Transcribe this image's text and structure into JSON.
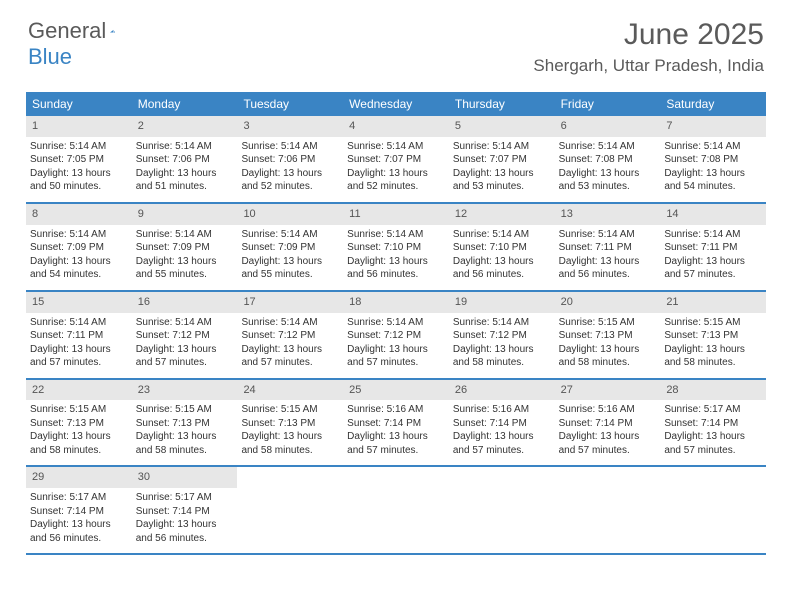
{
  "brand": {
    "part1": "General",
    "part2": "Blue"
  },
  "title": "June 2025",
  "location": "Shergarh, Uttar Pradesh, India",
  "colors": {
    "accent": "#3a84c4",
    "header_text": "#ffffff",
    "daynum_bg": "#e7e7e7",
    "text": "#333333",
    "muted": "#5a5a5a",
    "background": "#ffffff"
  },
  "typography": {
    "title_fontsize": 30,
    "location_fontsize": 17,
    "dayheader_fontsize": 12,
    "daynum_fontsize": 11,
    "body_fontsize": 10
  },
  "layout": {
    "columns": 7,
    "rows": 5,
    "cell_rule_color": "#3a84c4",
    "cell_rule_width": 2
  },
  "day_headers": [
    "Sunday",
    "Monday",
    "Tuesday",
    "Wednesday",
    "Thursday",
    "Friday",
    "Saturday"
  ],
  "days": [
    {
      "n": "1",
      "sr": "5:14 AM",
      "ss": "7:05 PM",
      "dl": "13 hours and 50 minutes."
    },
    {
      "n": "2",
      "sr": "5:14 AM",
      "ss": "7:06 PM",
      "dl": "13 hours and 51 minutes."
    },
    {
      "n": "3",
      "sr": "5:14 AM",
      "ss": "7:06 PM",
      "dl": "13 hours and 52 minutes."
    },
    {
      "n": "4",
      "sr": "5:14 AM",
      "ss": "7:07 PM",
      "dl": "13 hours and 52 minutes."
    },
    {
      "n": "5",
      "sr": "5:14 AM",
      "ss": "7:07 PM",
      "dl": "13 hours and 53 minutes."
    },
    {
      "n": "6",
      "sr": "5:14 AM",
      "ss": "7:08 PM",
      "dl": "13 hours and 53 minutes."
    },
    {
      "n": "7",
      "sr": "5:14 AM",
      "ss": "7:08 PM",
      "dl": "13 hours and 54 minutes."
    },
    {
      "n": "8",
      "sr": "5:14 AM",
      "ss": "7:09 PM",
      "dl": "13 hours and 54 minutes."
    },
    {
      "n": "9",
      "sr": "5:14 AM",
      "ss": "7:09 PM",
      "dl": "13 hours and 55 minutes."
    },
    {
      "n": "10",
      "sr": "5:14 AM",
      "ss": "7:09 PM",
      "dl": "13 hours and 55 minutes."
    },
    {
      "n": "11",
      "sr": "5:14 AM",
      "ss": "7:10 PM",
      "dl": "13 hours and 56 minutes."
    },
    {
      "n": "12",
      "sr": "5:14 AM",
      "ss": "7:10 PM",
      "dl": "13 hours and 56 minutes."
    },
    {
      "n": "13",
      "sr": "5:14 AM",
      "ss": "7:11 PM",
      "dl": "13 hours and 56 minutes."
    },
    {
      "n": "14",
      "sr": "5:14 AM",
      "ss": "7:11 PM",
      "dl": "13 hours and 57 minutes."
    },
    {
      "n": "15",
      "sr": "5:14 AM",
      "ss": "7:11 PM",
      "dl": "13 hours and 57 minutes."
    },
    {
      "n": "16",
      "sr": "5:14 AM",
      "ss": "7:12 PM",
      "dl": "13 hours and 57 minutes."
    },
    {
      "n": "17",
      "sr": "5:14 AM",
      "ss": "7:12 PM",
      "dl": "13 hours and 57 minutes."
    },
    {
      "n": "18",
      "sr": "5:14 AM",
      "ss": "7:12 PM",
      "dl": "13 hours and 57 minutes."
    },
    {
      "n": "19",
      "sr": "5:14 AM",
      "ss": "7:12 PM",
      "dl": "13 hours and 58 minutes."
    },
    {
      "n": "20",
      "sr": "5:15 AM",
      "ss": "7:13 PM",
      "dl": "13 hours and 58 minutes."
    },
    {
      "n": "21",
      "sr": "5:15 AM",
      "ss": "7:13 PM",
      "dl": "13 hours and 58 minutes."
    },
    {
      "n": "22",
      "sr": "5:15 AM",
      "ss": "7:13 PM",
      "dl": "13 hours and 58 minutes."
    },
    {
      "n": "23",
      "sr": "5:15 AM",
      "ss": "7:13 PM",
      "dl": "13 hours and 58 minutes."
    },
    {
      "n": "24",
      "sr": "5:15 AM",
      "ss": "7:13 PM",
      "dl": "13 hours and 58 minutes."
    },
    {
      "n": "25",
      "sr": "5:16 AM",
      "ss": "7:14 PM",
      "dl": "13 hours and 57 minutes."
    },
    {
      "n": "26",
      "sr": "5:16 AM",
      "ss": "7:14 PM",
      "dl": "13 hours and 57 minutes."
    },
    {
      "n": "27",
      "sr": "5:16 AM",
      "ss": "7:14 PM",
      "dl": "13 hours and 57 minutes."
    },
    {
      "n": "28",
      "sr": "5:17 AM",
      "ss": "7:14 PM",
      "dl": "13 hours and 57 minutes."
    },
    {
      "n": "29",
      "sr": "5:17 AM",
      "ss": "7:14 PM",
      "dl": "13 hours and 56 minutes."
    },
    {
      "n": "30",
      "sr": "5:17 AM",
      "ss": "7:14 PM",
      "dl": "13 hours and 56 minutes."
    }
  ],
  "labels": {
    "sunrise": "Sunrise:",
    "sunset": "Sunset:",
    "daylight": "Daylight:"
  }
}
